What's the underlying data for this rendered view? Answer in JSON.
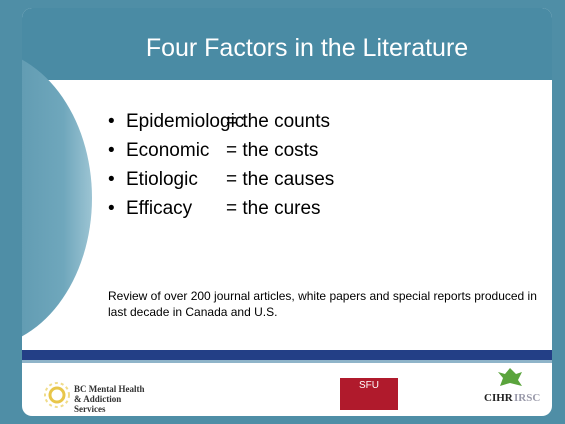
{
  "slide": {
    "title": "Four Factors in the Literature",
    "bullets": [
      {
        "term": "Epidemiologic",
        "meaning": "= the counts"
      },
      {
        "term": "Economic",
        "meaning": "= the costs"
      },
      {
        "term": "Etiologic",
        "meaning": "= the causes"
      },
      {
        "term": "Efficacy",
        "meaning": "= the cures"
      }
    ],
    "note": "Review of over 200 journal articles, white papers and special reports produced in last decade in Canada and U.S.",
    "logos": {
      "bcmhas": "BC Mental Health & Addiction Services",
      "sfu": "SFU",
      "cihr": "CIHR",
      "irsc": "IRSC"
    }
  }
}
